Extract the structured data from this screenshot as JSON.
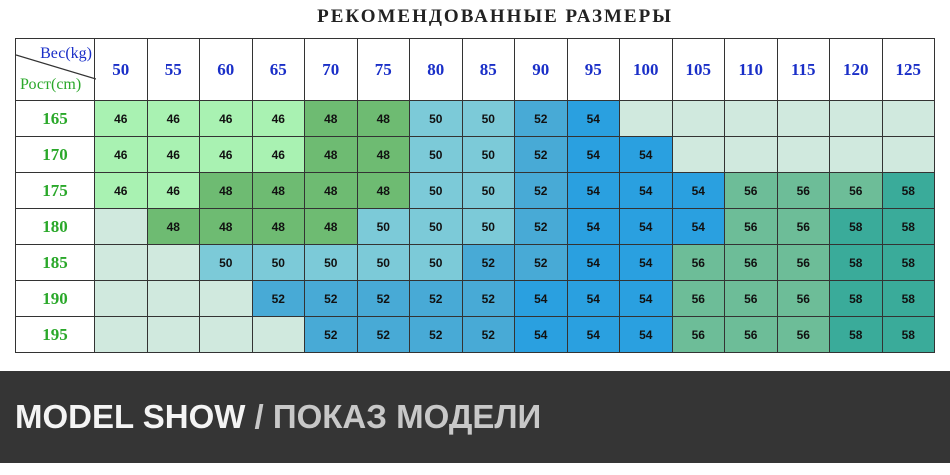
{
  "title": "РЕКОМЕНДОВАННЫЕ РАЗМЕРЫ",
  "corner": {
    "weight_label": "Вес",
    "weight_unit": "(kg)",
    "height_label": "Рост",
    "height_unit": "(cm)"
  },
  "weights": [
    "50",
    "55",
    "60",
    "65",
    "70",
    "75",
    "80",
    "85",
    "90",
    "95",
    "100",
    "105",
    "110",
    "115",
    "120",
    "125"
  ],
  "rows": [
    {
      "height": "165",
      "sizes": [
        "46",
        "46",
        "46",
        "46",
        "48",
        "48",
        "50",
        "50",
        "52",
        "54",
        "",
        "",
        "",
        "",
        "",
        ""
      ]
    },
    {
      "height": "170",
      "sizes": [
        "46",
        "46",
        "46",
        "46",
        "48",
        "48",
        "50",
        "50",
        "52",
        "54",
        "54",
        "",
        "",
        "",
        "",
        ""
      ]
    },
    {
      "height": "175",
      "sizes": [
        "46",
        "46",
        "48",
        "48",
        "48",
        "48",
        "50",
        "50",
        "52",
        "54",
        "54",
        "54",
        "56",
        "56",
        "56",
        "58"
      ]
    },
    {
      "height": "180",
      "sizes": [
        "",
        "48",
        "48",
        "48",
        "48",
        "50",
        "50",
        "50",
        "52",
        "54",
        "54",
        "54",
        "56",
        "56",
        "58",
        "58"
      ]
    },
    {
      "height": "185",
      "sizes": [
        "",
        "",
        "50",
        "50",
        "50",
        "50",
        "50",
        "52",
        "52",
        "54",
        "54",
        "56",
        "56",
        "56",
        "58",
        "58"
      ]
    },
    {
      "height": "190",
      "sizes": [
        "",
        "",
        "",
        "52",
        "52",
        "52",
        "52",
        "52",
        "54",
        "54",
        "54",
        "56",
        "56",
        "56",
        "58",
        "58"
      ]
    },
    {
      "height": "195",
      "sizes": [
        "",
        "",
        "",
        "",
        "52",
        "52",
        "52",
        "52",
        "54",
        "54",
        "54",
        "56",
        "56",
        "56",
        "58",
        "58"
      ]
    }
  ],
  "size_colors": {
    "46": "#a9f2b2",
    "48": "#6ebb72",
    "50": "#7ccad8",
    "52": "#48aad6",
    "54": "#2aa0e0",
    "56": "#6dbd98",
    "58": "#3aab9a",
    "empty": "#d0e9de"
  },
  "banner": {
    "english": "MODEL SHOW",
    "separator": " / ",
    "russian": "ПОКАЗ МОДЕЛИ"
  }
}
